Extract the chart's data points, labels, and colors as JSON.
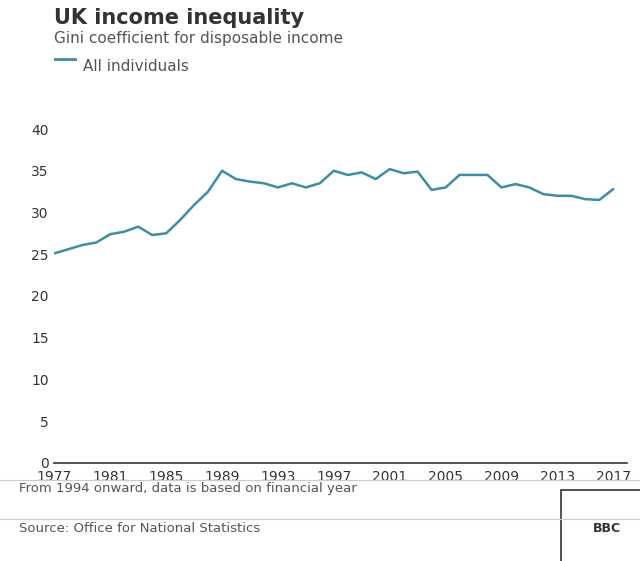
{
  "title": "UK income inequality",
  "subtitle": "Gini coefficient for disposable income",
  "legend_label": "All individuals",
  "line_color": "#3d8fa0",
  "footnote": "From 1994 onward, data is based on financial year",
  "source": "Source: Office for National Statistics",
  "bbc_label": "BBC",
  "years": [
    1977,
    1978,
    1979,
    1980,
    1981,
    1982,
    1983,
    1984,
    1985,
    1986,
    1987,
    1988,
    1989,
    1990,
    1991,
    1992,
    1993,
    1994,
    1995,
    1996,
    1997,
    1998,
    1999,
    2000,
    2001,
    2002,
    2003,
    2004,
    2005,
    2006,
    2007,
    2008,
    2009,
    2010,
    2011,
    2012,
    2013,
    2014,
    2015,
    2016,
    2017
  ],
  "values": [
    25.1,
    25.6,
    26.1,
    26.4,
    27.4,
    27.7,
    28.3,
    27.3,
    27.5,
    29.1,
    30.9,
    32.5,
    35.0,
    34.0,
    33.7,
    33.5,
    33.0,
    33.5,
    33.0,
    33.5,
    35.0,
    34.5,
    34.8,
    34.0,
    35.2,
    34.7,
    34.9,
    32.7,
    33.0,
    34.5,
    34.5,
    34.5,
    33.0,
    33.4,
    33.0,
    32.2,
    32.0,
    32.0,
    31.6,
    31.5,
    32.8
  ],
  "xlim": [
    1977,
    2018
  ],
  "ylim": [
    0,
    40
  ],
  "yticks": [
    0,
    5,
    10,
    15,
    20,
    25,
    30,
    35,
    40
  ],
  "xticks": [
    1977,
    1981,
    1985,
    1989,
    1993,
    1997,
    2001,
    2005,
    2009,
    2013,
    2017
  ],
  "bg_color": "#ffffff",
  "text_color": "#333333",
  "subtitle_color": "#555555",
  "title_fontsize": 15,
  "subtitle_fontsize": 11,
  "tick_fontsize": 10,
  "footnote_fontsize": 9.5,
  "line_width": 1.8
}
